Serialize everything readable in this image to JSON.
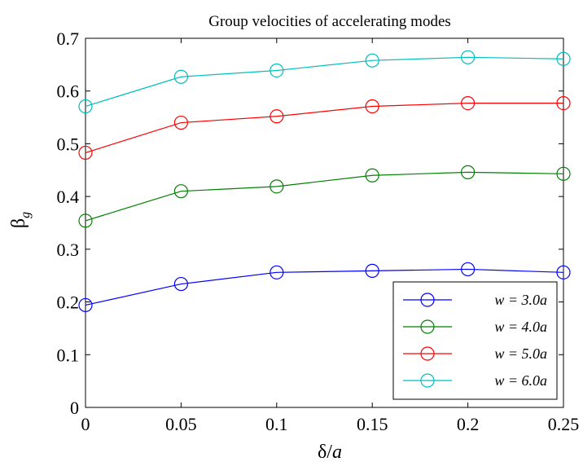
{
  "chart_data": {
    "type": "line",
    "title": "Group velocities of accelerating modes",
    "xlabel": "δ/a",
    "ylabel": "βg",
    "xlim": [
      0,
      0.25
    ],
    "ylim": [
      0,
      0.7
    ],
    "x_ticks": [
      "0",
      "0.05",
      "0.1",
      "0.15",
      "0.2",
      "0.25"
    ],
    "y_ticks": [
      "0",
      "0.1",
      "0.2",
      "0.3",
      "0.4",
      "0.5",
      "0.6",
      "0.7"
    ],
    "x": [
      0,
      0.05,
      0.1,
      0.15,
      0.2,
      0.25
    ],
    "grid": false,
    "legend_position": "bottom-right",
    "marker": "circle-open",
    "series": [
      {
        "name": "w = 3.0a",
        "color": "#0000ff",
        "values": [
          0.194,
          0.234,
          0.256,
          0.259,
          0.262,
          0.256
        ]
      },
      {
        "name": "w = 4.0a",
        "color": "#008000",
        "values": [
          0.354,
          0.41,
          0.419,
          0.44,
          0.446,
          0.443
        ]
      },
      {
        "name": "w = 5.0a",
        "color": "#ff0000",
        "values": [
          0.483,
          0.54,
          0.552,
          0.571,
          0.577,
          0.577
        ]
      },
      {
        "name": "w = 6.0a",
        "color": "#00bfbf",
        "values": [
          0.571,
          0.627,
          0.639,
          0.658,
          0.664,
          0.661
        ]
      }
    ]
  }
}
